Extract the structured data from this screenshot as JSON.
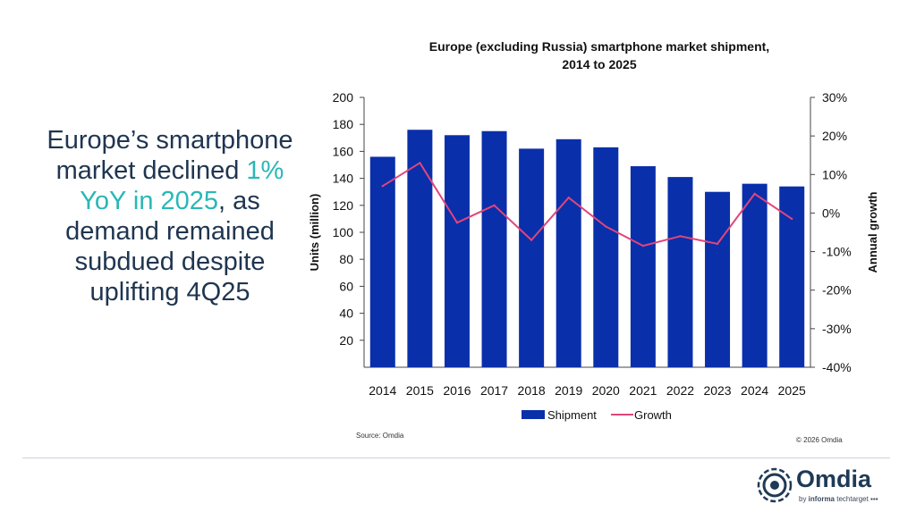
{
  "headline": {
    "part1": "Europe’s smartphone market declined ",
    "highlight1": "1% YoY in 2025",
    "part2": ", as demand remained subdued despite uplifting 4Q25"
  },
  "source": "Source: Omdia",
  "copyright": "© 2026 Omdia",
  "brand": {
    "name": "Omdia",
    "sub_prefix": "by ",
    "sub_bold": "informa",
    "sub_rest": " techtarget ▪▪▪"
  },
  "colors": {
    "bar": "#0a2faa",
    "line": "#e0457b",
    "headline": "#1f3550",
    "highlight": "#2ab7b7"
  },
  "chart_data": {
    "type": "bar",
    "title_line1": "Europe (excluding Russia) smartphone market shipment,",
    "title_line2": "2014 to 2025",
    "categories": [
      "2014",
      "2015",
      "2016",
      "2017",
      "2018",
      "2019",
      "2020",
      "2021",
      "2022",
      "2023",
      "2024",
      "2025"
    ],
    "series": [
      {
        "name": "Shipment",
        "type": "bar",
        "axis": "left",
        "values": [
          156,
          176,
          172,
          175,
          162,
          169,
          163,
          149,
          141,
          130,
          136,
          134
        ]
      },
      {
        "name": "Growth",
        "type": "line",
        "axis": "right",
        "values": [
          7.0,
          13.0,
          -2.5,
          2.0,
          -7.0,
          4.0,
          -3.5,
          -8.5,
          -6.0,
          -8.0,
          5.0,
          -1.5
        ]
      }
    ],
    "ylabel": "Units (million)",
    "y2label": "Annual growth",
    "ylim": [
      0,
      200
    ],
    "y2lim": [
      -40,
      30
    ],
    "yticks": [
      "20",
      "40",
      "60",
      "80",
      "100",
      "120",
      "140",
      "160",
      "180",
      "200"
    ],
    "y2ticks": [
      "30%",
      "20%",
      "10%",
      "0%",
      "-10%",
      "-20%",
      "-30%",
      "-40%"
    ],
    "legend_position": "bottom"
  }
}
